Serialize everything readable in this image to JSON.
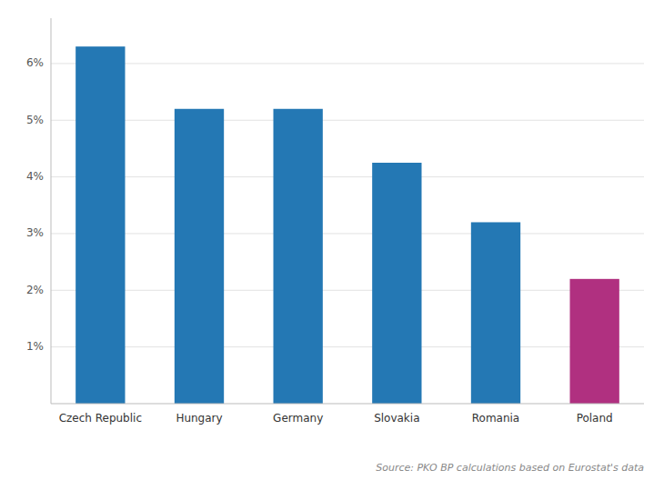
{
  "chart_data": {
    "type": "bar",
    "categories": [
      "Czech Republic",
      "Hungary",
      "Germany",
      "Slovakia",
      "Romania",
      "Poland"
    ],
    "values": [
      0.063,
      0.052,
      0.052,
      0.0425,
      0.032,
      0.022
    ],
    "colors": [
      "#2478B4",
      "#2478B4",
      "#2478B4",
      "#2478B4",
      "#2478B4",
      "#B03080"
    ],
    "ylim": [
      0,
      0.068
    ],
    "yticks": [
      {
        "value": 0.01,
        "label": "1%"
      },
      {
        "value": 0.02,
        "label": "2%"
      },
      {
        "value": 0.03,
        "label": "3%"
      },
      {
        "value": 0.04,
        "label": "4%"
      },
      {
        "value": 0.05,
        "label": "5%"
      },
      {
        "value": 0.06,
        "label": "6%"
      }
    ],
    "grid": true,
    "annotations": [
      "Source: PKO BP calculations based on Eurostat's data"
    ]
  }
}
